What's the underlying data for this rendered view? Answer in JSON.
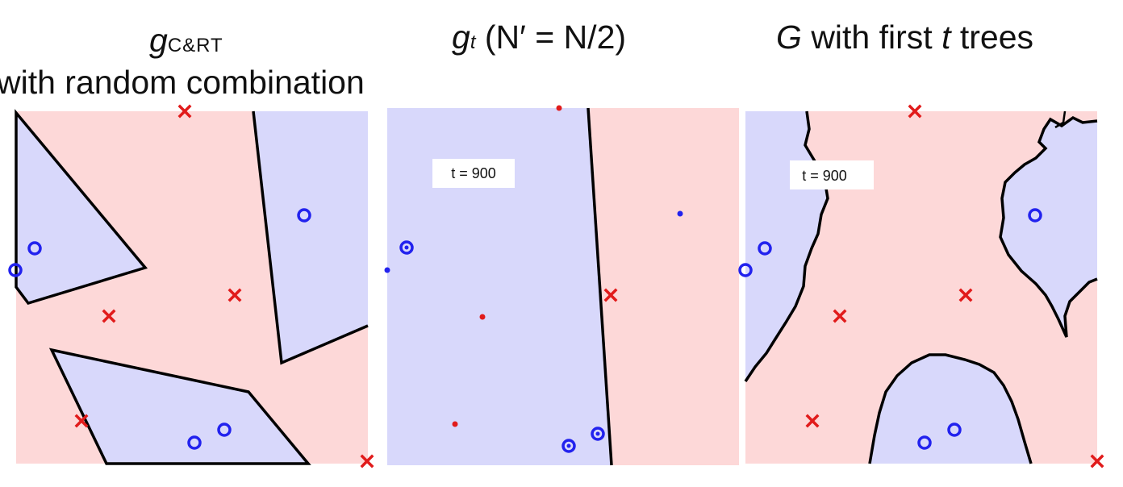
{
  "titles": {
    "panel1": {
      "symbol": "g",
      "subscript": "C&RT",
      "line2": "with random combination"
    },
    "panel2": {
      "symbol": "g",
      "subscript": "t",
      "condition": "(N′ = N/2)"
    },
    "panel3": {
      "symbol": "G",
      "text": "with first",
      "t": "t",
      "trees": "trees"
    }
  },
  "labels": {
    "panel2_t": "t = 900",
    "panel3_t": "t = 900"
  },
  "colors": {
    "region_pink": "#fdd8d8",
    "region_blue": "#d8d8fb",
    "circle": "#2222ee",
    "cross": "#e11b1b",
    "boundary": "#000000"
  },
  "markers": [
    "blue-circle",
    "red-cross"
  ]
}
